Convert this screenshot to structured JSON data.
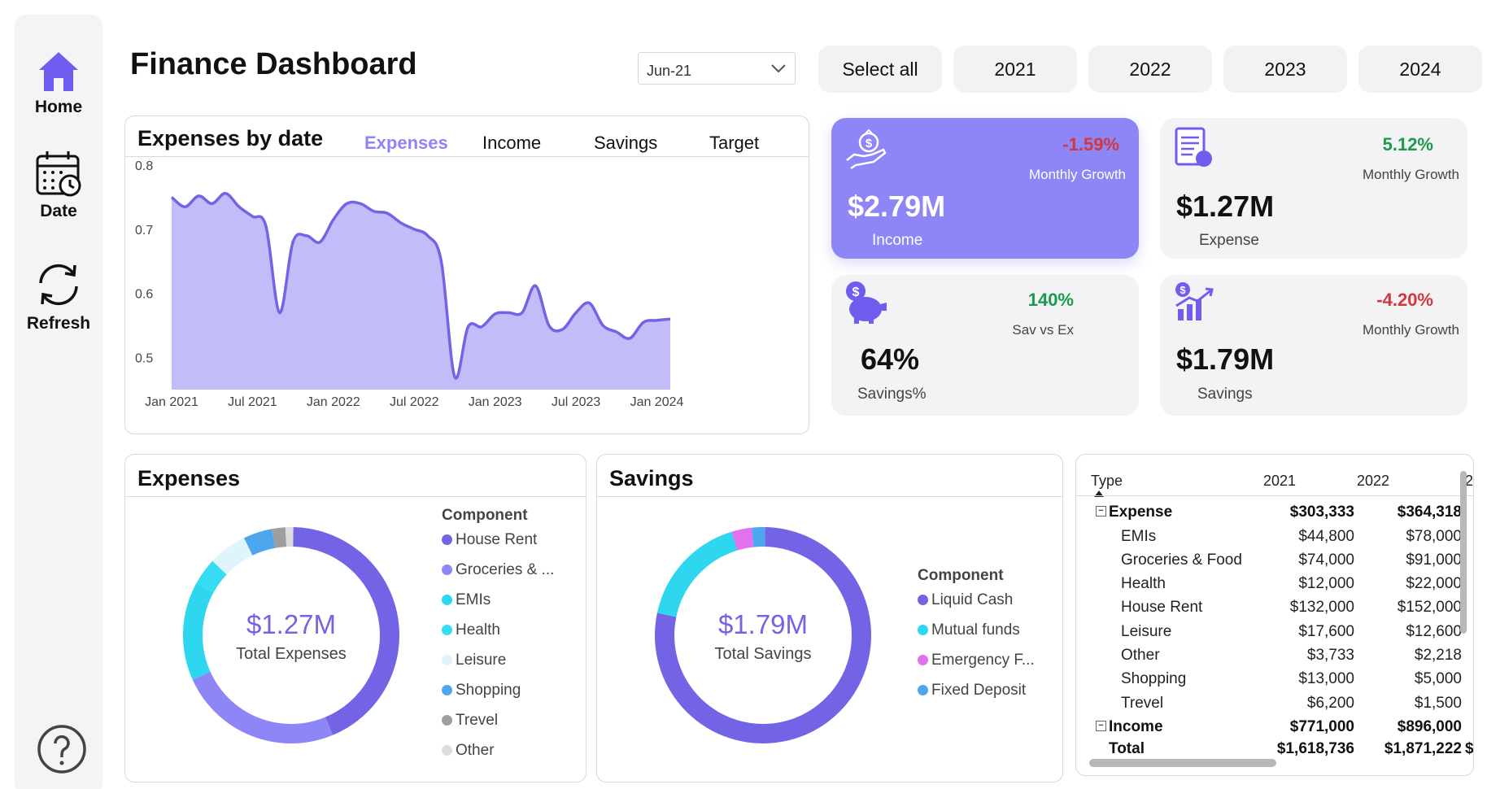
{
  "sidebar": {
    "home_label": "Home",
    "date_label": "Date",
    "refresh_label": "Refresh"
  },
  "header": {
    "title": "Finance Dashboard",
    "date_value": "Jun-21",
    "filters": [
      "Select all",
      "2021",
      "2022",
      "2023",
      "2024"
    ]
  },
  "line_card": {
    "title": "Expenses by date",
    "tabs": [
      "Expenses",
      "Income",
      "Savings",
      "Target"
    ],
    "active_tab": "Expenses"
  },
  "kpis": {
    "income": {
      "pct": "-1.59%",
      "sub": "Monthly Growth",
      "value": "$2.79M",
      "label": "Income"
    },
    "expense": {
      "pct": "5.12%",
      "sub": "Monthly Growth",
      "value": "$1.27M",
      "label": "Expense"
    },
    "savings_pct": {
      "pct": "140%",
      "sub": "Sav vs Ex",
      "value": "64%",
      "label": "Savings%"
    },
    "savings": {
      "pct": "-4.20%",
      "sub": "Monthly Growth",
      "value": "$1.79M",
      "label": "Savings"
    }
  },
  "colors": {
    "accent": "#8e85f7",
    "line": "#7364e6",
    "area": "#c2bdf9",
    "positive": "#1a9a4c",
    "negative": "#d2363e"
  },
  "expenses_donut": {
    "title": "Expenses",
    "center_value": "$1.27M",
    "center_label": "Total Expenses",
    "legend_title": "Component"
  },
  "savings_donut": {
    "title": "Savings",
    "center_value": "$1.79M",
    "center_label": "Total Savings",
    "legend_title": "Component"
  },
  "matrix": {
    "headers": [
      "Type",
      "2021",
      "2022",
      "2"
    ],
    "rows": [
      {
        "label": "Expense",
        "v2021": "$303,333",
        "v2022": "$364,318",
        "bold": true,
        "expander": "⊟"
      },
      {
        "label": "EMIs",
        "v2021": "$44,800",
        "v2022": "$78,000"
      },
      {
        "label": "Groceries & Food",
        "v2021": "$74,000",
        "v2022": "$91,000"
      },
      {
        "label": "Health",
        "v2021": "$12,000",
        "v2022": "$22,000"
      },
      {
        "label": "House Rent",
        "v2021": "$132,000",
        "v2022": "$152,000"
      },
      {
        "label": "Leisure",
        "v2021": "$17,600",
        "v2022": "$12,600"
      },
      {
        "label": "Other",
        "v2021": "$3,733",
        "v2022": "$2,218"
      },
      {
        "label": "Shopping",
        "v2021": "$13,000",
        "v2022": "$5,000"
      },
      {
        "label": "Trevel",
        "v2021": "$6,200",
        "v2022": "$1,500"
      },
      {
        "label": "Income",
        "v2021": "$771,000",
        "v2022": "$896,000",
        "bold": true,
        "expander": "⊟"
      },
      {
        "label": "Total",
        "v2021": "$1,618,736",
        "v2022": "$1,871,222",
        "v2023": "$",
        "bold": true
      }
    ]
  },
  "chart_data": [
    {
      "type": "area",
      "title": "Expenses by date",
      "x_ticks": [
        "Jan 2021",
        "Jul 2021",
        "Jan 2022",
        "Jul 2022",
        "Jan 2023",
        "Jul 2023",
        "Jan 2024"
      ],
      "y_ticks": [
        "0.8",
        "0.7",
        "0.6",
        "0.5"
      ],
      "ylim": [
        0.45,
        0.8
      ],
      "x": [
        2021.0,
        2021.083,
        2021.167,
        2021.25,
        2021.333,
        2021.417,
        2021.5,
        2021.583,
        2021.667,
        2021.75,
        2021.833,
        2021.917,
        2022.0,
        2022.083,
        2022.167,
        2022.25,
        2022.333,
        2022.417,
        2022.5,
        2022.583,
        2022.667,
        2022.75,
        2022.833,
        2022.917,
        2023.0,
        2023.083,
        2023.167,
        2023.25,
        2023.333,
        2023.417,
        2023.5,
        2023.583,
        2023.667,
        2023.75,
        2023.833,
        2023.917,
        2024.0,
        2024.083
      ],
      "values": [
        0.75,
        0.735,
        0.752,
        0.74,
        0.756,
        0.735,
        0.72,
        0.705,
        0.57,
        0.68,
        0.69,
        0.68,
        0.715,
        0.74,
        0.74,
        0.728,
        0.725,
        0.71,
        0.7,
        0.69,
        0.65,
        0.47,
        0.548,
        0.548,
        0.568,
        0.57,
        0.57,
        0.612,
        0.55,
        0.544,
        0.57,
        0.585,
        0.55,
        0.54,
        0.53,
        0.555,
        0.558,
        0.56
      ],
      "grid": false
    },
    {
      "type": "pie",
      "title": "Expenses",
      "legend_title": "Component",
      "categories": [
        "House Rent",
        "Groceries & ...",
        "EMIs",
        "Health",
        "Leisure",
        "Shopping",
        "Trevel",
        "Other"
      ],
      "values": [
        0.405,
        0.229,
        0.138,
        0.037,
        0.054,
        0.04,
        0.019,
        0.011
      ],
      "colors": [
        "#7364e6",
        "#8e85f7",
        "#2ed6f0",
        "#35dcf2",
        "#dff4fb",
        "#4da7ee",
        "#9e9e9e",
        "#dddddd"
      ]
    },
    {
      "type": "pie",
      "title": "Savings",
      "legend_title": "Component",
      "categories": [
        "Liquid Cash",
        "Mutual funds",
        "Emergency F...",
        "Fixed Deposit"
      ],
      "values": [
        0.78,
        0.17,
        0.03,
        0.02
      ],
      "colors": [
        "#7364e6",
        "#2ed6f0",
        "#e072ee",
        "#4da7ee"
      ]
    }
  ]
}
